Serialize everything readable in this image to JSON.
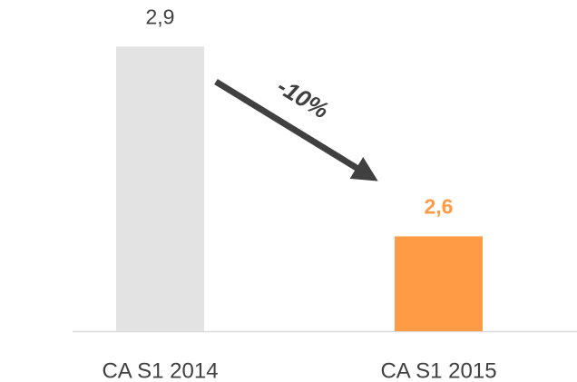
{
  "chart_data": {
    "type": "bar",
    "categories": [
      "CA S1 2014",
      "CA S1 2015"
    ],
    "values": [
      2.9,
      2.6
    ],
    "value_labels": [
      "2,9",
      "2,6"
    ],
    "colors": [
      "#e3e3e3",
      "#ff9a45"
    ],
    "label_colors": [
      "#404040",
      "#ff9a45"
    ],
    "ylim": [
      2.45,
      2.95
    ],
    "annotation": "-10%"
  }
}
